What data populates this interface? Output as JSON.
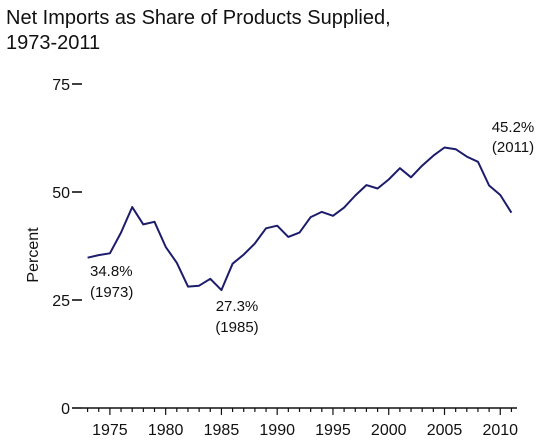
{
  "chart_data": {
    "type": "line",
    "title": [
      "Net Imports as Share of Products Supplied,",
      "1973-2011"
    ],
    "xlabel": "",
    "ylabel": "Percent",
    "xlim": [
      1972.5,
      2011.5
    ],
    "ylim": [
      0,
      75
    ],
    "yticks": [
      0,
      25,
      50,
      75
    ],
    "xticks": [
      1975,
      1980,
      1985,
      1990,
      1995,
      2000,
      2005,
      2010
    ],
    "grid": false,
    "series": [
      {
        "color": "#1c1c6b",
        "x": [
          1973,
          1974,
          1975,
          1976,
          1977,
          1978,
          1979,
          1980,
          1981,
          1982,
          1983,
          1984,
          1985,
          1986,
          1987,
          1988,
          1989,
          1990,
          1991,
          1992,
          1993,
          1994,
          1995,
          1996,
          1997,
          1998,
          1999,
          2000,
          2001,
          2002,
          2003,
          2004,
          2005,
          2006,
          2007,
          2008,
          2009,
          2010,
          2011
        ],
        "y": [
          34.8,
          35.4,
          35.8,
          40.6,
          46.5,
          42.5,
          43.1,
          37.3,
          33.6,
          28.1,
          28.3,
          29.9,
          27.3,
          33.4,
          35.5,
          38.1,
          41.6,
          42.2,
          39.6,
          40.6,
          44.2,
          45.4,
          44.5,
          46.4,
          49.2,
          51.6,
          50.8,
          52.9,
          55.5,
          53.4,
          56.1,
          58.4,
          60.3,
          59.9,
          58.2,
          57.0,
          51.5,
          49.3,
          45.2
        ]
      }
    ],
    "annotations": [
      {
        "value": "34.8%",
        "year": "(1973)"
      },
      {
        "value": "27.3%",
        "year": "(1985)"
      },
      {
        "value": "45.2%",
        "year": "(2011)"
      }
    ]
  }
}
